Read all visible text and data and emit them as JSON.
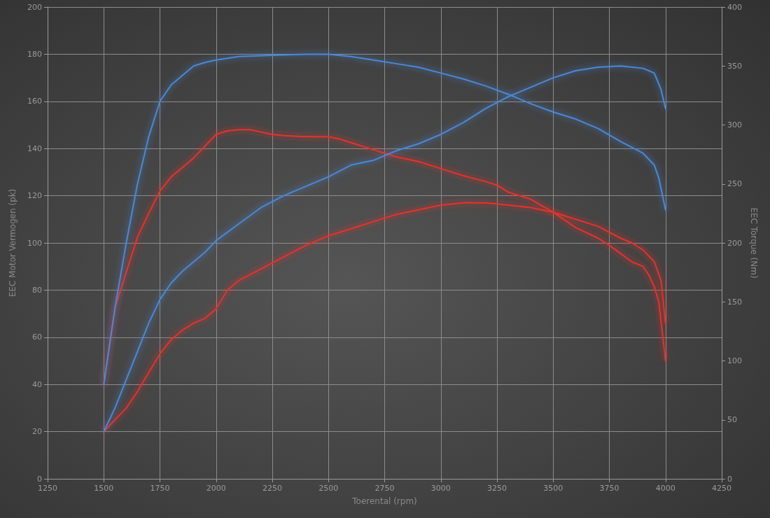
{
  "chart_data": {
    "type": "line",
    "xlabel": "Toerental (rpm)",
    "ylabel": "EEC Motor Vermogen (pk)",
    "y2label": "EEC Torque (Nm)",
    "xlim": [
      1250,
      4250
    ],
    "xticks": [
      1250,
      1500,
      1750,
      2000,
      2250,
      2500,
      2750,
      3000,
      3250,
      3500,
      3750,
      4000,
      4250
    ],
    "ylim": [
      0,
      200
    ],
    "yticks": [
      0,
      20,
      40,
      60,
      80,
      100,
      120,
      140,
      160,
      180,
      200
    ],
    "y2lim": [
      0,
      400
    ],
    "y2ticks": [
      0,
      50,
      100,
      150,
      200,
      250,
      300,
      350,
      400
    ],
    "grid": true,
    "line_style": "solid",
    "series": [
      {
        "color": "#4a88d8",
        "x": [
          1500,
          1550,
          1600,
          1650,
          1700,
          1750,
          1800,
          1850,
          1900,
          1950,
          2000,
          2100,
          2200,
          2300,
          2400,
          2500,
          2600,
          2700,
          2800,
          2900,
          3000,
          3100,
          3200,
          3300,
          3400,
          3500,
          3600,
          3700,
          3800,
          3900,
          3950,
          3980,
          4000
        ],
        "values": [
          20,
          30,
          42,
          54,
          66,
          76,
          83,
          88,
          92,
          96,
          101,
          108,
          115,
          120,
          124,
          128,
          133,
          135,
          139,
          142,
          146,
          151,
          157,
          162,
          166,
          170,
          173,
          174.5,
          175,
          174,
          172,
          165,
          157
        ]
      },
      {
        "color": "#4a88d8",
        "axis": "y2",
        "x": [
          1500,
          1550,
          1600,
          1650,
          1700,
          1750,
          1800,
          1850,
          1900,
          1950,
          2000,
          2100,
          2250,
          2400,
          2500,
          2600,
          2700,
          2800,
          2900,
          3000,
          3100,
          3200,
          3300,
          3400,
          3500,
          3600,
          3700,
          3800,
          3900,
          3950,
          3970,
          4000
        ],
        "values": [
          80,
          145,
          200,
          250,
          290,
          320,
          334,
          342,
          350,
          353,
          355,
          358,
          359,
          360,
          360,
          358,
          355,
          352,
          349,
          344,
          339,
          333,
          326,
          318,
          311,
          305,
          297,
          286,
          276,
          266,
          255,
          228
        ]
      },
      {
        "color": "#e8302a",
        "axis": "y2",
        "x": [
          1500,
          1550,
          1600,
          1650,
          1700,
          1750,
          1800,
          1850,
          1900,
          1950,
          2000,
          2050,
          2100,
          2150,
          2200,
          2250,
          2300,
          2400,
          2500,
          2550,
          2600,
          2700,
          2800,
          2900,
          3000,
          3100,
          3200,
          3250,
          3300,
          3400,
          3500,
          3600,
          3700,
          3750,
          3800,
          3850,
          3900,
          3925,
          3950,
          3970,
          4000
        ],
        "values": [
          80,
          145,
          175,
          205,
          225,
          244,
          256,
          264,
          272,
          282,
          292,
          295,
          296,
          296,
          294,
          292,
          291,
          290,
          290,
          288,
          285,
          279,
          273,
          269,
          263,
          257,
          252,
          249,
          243,
          237,
          226,
          213,
          204,
          198,
          191,
          184,
          180,
          173,
          163,
          150,
          100
        ]
      },
      {
        "color": "#e8302a",
        "x": [
          1500,
          1550,
          1600,
          1650,
          1700,
          1750,
          1800,
          1850,
          1900,
          1950,
          2000,
          2050,
          2100,
          2200,
          2300,
          2400,
          2500,
          2600,
          2700,
          2800,
          2900,
          3000,
          3100,
          3200,
          3300,
          3400,
          3500,
          3600,
          3700,
          3800,
          3850,
          3900,
          3950,
          3980,
          4000
        ],
        "values": [
          20,
          25,
          30,
          37,
          45,
          53,
          59,
          63,
          66,
          68,
          72,
          80,
          84,
          89,
          94,
          99,
          103,
          106,
          109,
          112,
          114,
          116,
          117,
          117,
          116,
          115,
          113,
          110,
          107,
          102,
          100,
          97,
          92,
          84,
          66
        ]
      }
    ]
  }
}
